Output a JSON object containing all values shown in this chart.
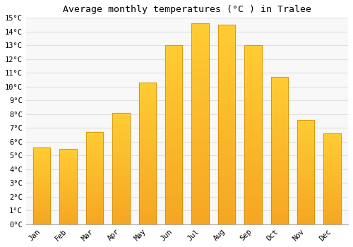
{
  "title": "Average monthly temperatures (°C ) in Tralee",
  "months": [
    "Jan",
    "Feb",
    "Mar",
    "Apr",
    "May",
    "Jun",
    "Jul",
    "Aug",
    "Sep",
    "Oct",
    "Nov",
    "Dec"
  ],
  "values": [
    5.6,
    5.5,
    6.7,
    8.1,
    10.3,
    13.0,
    14.6,
    14.5,
    13.0,
    10.7,
    7.6,
    6.6
  ],
  "bar_color_top": "#FFCC33",
  "bar_color_bottom": "#F5A623",
  "bar_edge_color": "#CC8800",
  "ylim": [
    0,
    15
  ],
  "yticks": [
    0,
    1,
    2,
    3,
    4,
    5,
    6,
    7,
    8,
    9,
    10,
    11,
    12,
    13,
    14,
    15
  ],
  "background_color": "#FFFFFF",
  "plot_bg_color": "#F8F8F8",
  "grid_color": "#E0E0E0",
  "title_fontsize": 9.5,
  "tick_fontsize": 7.5,
  "font_family": "monospace"
}
